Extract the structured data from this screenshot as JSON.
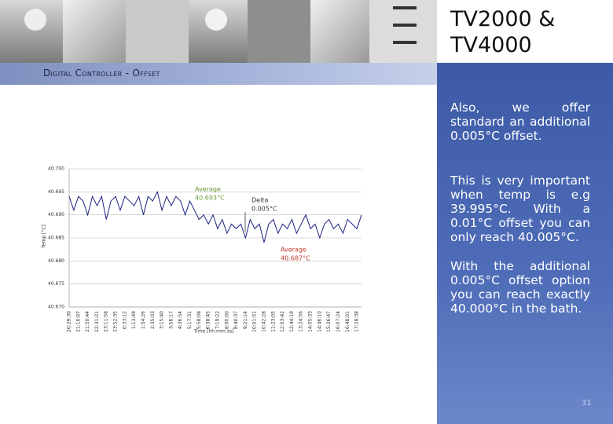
{
  "header": {
    "title": "TV2000 & TV4000",
    "subtitle": "Digital Controller - Offset"
  },
  "paragraphs": [
    "Also, we offer standard an additional 0.005°C offset.",
    "This is very important when temp is e.g 39.995°C. With a 0.01°C offset you can only reach 40.005°C.",
    "With the additional 0.005°C offset option you can reach exactly 40.000°C in the bath."
  ],
  "page_number": "31",
  "chart_data": {
    "type": "line",
    "ylabel": "Temp [°C]",
    "xlabel": "Time [hh:mm:ss]",
    "annotations": [
      "Average",
      "40.693°C",
      "Delta",
      "0.005°C",
      "Average",
      "40.687°C"
    ],
    "color": "#1a237e",
    "ylim": [
      40.67,
      40.7
    ],
    "yticks": [
      {
        "value": 40.7,
        "label": "40.700"
      },
      40.695,
      {
        "value": 40.69,
        "label": "40.690"
      },
      40.685,
      {
        "value": 40.68,
        "label": "40.680"
      },
      40.675,
      {
        "value": 40.67,
        "label": "40.670"
      }
    ],
    "grid": true,
    "categories": [
      "20:29:30",
      null,
      "21:10:07",
      null,
      "21:50:44",
      null,
      "22:31:21",
      null,
      "23:11:58",
      null,
      "23:52:35",
      null,
      "0:33:12",
      null,
      "1:13:49",
      null,
      "1:54:26",
      null,
      "2:35:03",
      null,
      "3:15:40",
      null,
      "3:56:17",
      null,
      "4:36:54",
      null,
      "5:17:31",
      null,
      "5:58:08",
      null,
      "6:38:45",
      null,
      "7:19:22",
      null,
      "8:00:00",
      null,
      "8:40:37",
      null,
      "9:21:14",
      null,
      "10:01:51",
      null,
      "10:42:28",
      null,
      "11:23:05",
      null,
      "12:03:42",
      null,
      "12:44:19",
      null,
      "13:24:56",
      null,
      "14:05:33",
      null,
      "14:46:10",
      null,
      "15:26:47",
      null,
      "16:07:24",
      null,
      "16:48:01",
      null,
      "17:28:38",
      null
    ],
    "values": [
      40.694,
      40.691,
      40.694,
      40.693,
      40.69,
      40.694,
      40.692,
      40.694,
      40.689,
      40.693,
      40.694,
      40.691,
      40.694,
      40.693,
      40.692,
      40.694,
      40.69,
      40.694,
      40.693,
      40.695,
      40.691,
      40.694,
      40.692,
      40.694,
      40.693,
      40.69,
      40.693,
      40.691,
      40.689,
      40.69,
      40.688,
      40.69,
      40.687,
      40.689,
      40.686,
      40.688,
      40.687,
      40.688,
      40.685,
      40.689,
      40.687,
      40.688,
      40.684,
      40.688,
      40.689,
      40.686,
      40.688,
      40.687,
      40.689,
      40.686,
      40.688,
      40.69,
      40.687,
      40.688,
      40.685,
      40.688,
      40.689,
      40.687,
      40.688,
      40.686,
      40.689,
      40.688,
      40.687,
      40.69
    ]
  }
}
